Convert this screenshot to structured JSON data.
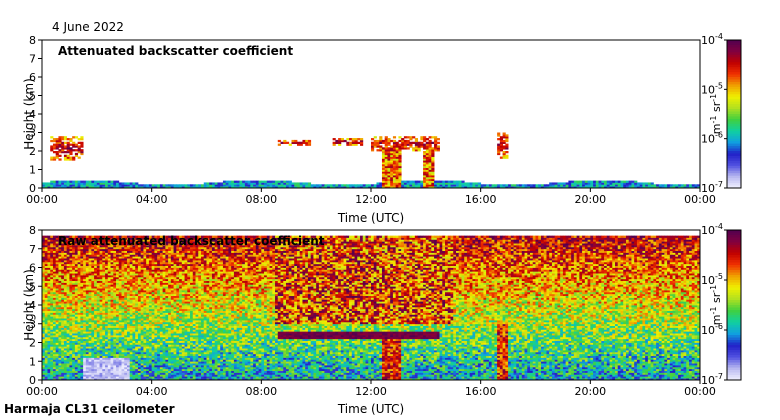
{
  "page": {
    "date": "4 June 2022",
    "footer": "Harmaja CL31 ceilometer"
  },
  "colorbar": {
    "stops": [
      "#f0f0ff",
      "#b8b8f0",
      "#5050e0",
      "#2020c8",
      "#10a0e0",
      "#10d0a0",
      "#40d040",
      "#b0e020",
      "#f0f000",
      "#f0a000",
      "#f03000",
      "#c00000",
      "#800040",
      "#500050"
    ],
    "ticks": [
      {
        "base": "10",
        "exp": "-4",
        "value": 0.0001
      },
      {
        "base": "10",
        "exp": "-5",
        "value": 1e-05
      },
      {
        "base": "10",
        "exp": "-6",
        "value": 1e-06
      },
      {
        "base": "10",
        "exp": "-7",
        "value": 1e-07
      }
    ],
    "unit_m": "m",
    "unit_m_exp": "-1",
    "unit_sr": "sr",
    "unit_sr_exp": "-1"
  },
  "chart_data": [
    {
      "type": "heatmap",
      "title": "Attenuated backscatter coefficient",
      "xlabel": "Time (UTC)",
      "ylabel": "Height (km)",
      "xlim": [
        0,
        24
      ],
      "ylim": [
        0,
        8
      ],
      "xticks": [
        0,
        4,
        8,
        12,
        16,
        20,
        24
      ],
      "xticklabels": [
        "00:00",
        "04:00",
        "08:00",
        "12:00",
        "16:00",
        "20:00",
        "00:00"
      ],
      "yticks": [
        0,
        1,
        2,
        3,
        4,
        5,
        6,
        7,
        8
      ],
      "color_scale": {
        "min": 1e-07,
        "max": 0.0001,
        "scale": "log"
      },
      "features": [
        {
          "kind": "surface_layer",
          "description": "near-surface aerosol",
          "t_start": 0,
          "t_end": 24,
          "top_km": 0.45
        },
        {
          "kind": "cloud_layer",
          "t_start": 8.6,
          "t_end": 9.8,
          "base_km": 2.35,
          "top_km": 2.6,
          "level": "high"
        },
        {
          "kind": "cloud_layer",
          "t_start": 10.6,
          "t_end": 11.7,
          "base_km": 2.3,
          "top_km": 2.7,
          "level": "high"
        },
        {
          "kind": "cloud_layer",
          "t_start": 12.0,
          "t_end": 14.5,
          "base_km": 2.0,
          "top_km": 2.8,
          "level": "high"
        },
        {
          "kind": "precipitation_column",
          "t_start": 12.4,
          "t_end": 13.1,
          "top_km": 2.2
        },
        {
          "kind": "precipitation_column",
          "t_start": 13.9,
          "t_end": 14.3,
          "top_km": 2.0
        },
        {
          "kind": "cloud_layer",
          "t_start": 16.6,
          "t_end": 17.0,
          "base_km": 1.6,
          "top_km": 3.0,
          "level": "medium"
        },
        {
          "kind": "cloud_layer",
          "t_start": 0.3,
          "t_end": 1.5,
          "base_km": 1.5,
          "top_km": 2.8,
          "level": "high"
        }
      ]
    },
    {
      "type": "heatmap",
      "title": "Raw attenuated backscatter coefficient",
      "xlabel": "Time (UTC)",
      "ylabel": "Height (km)",
      "xlim": [
        0,
        24
      ],
      "ylim": [
        0,
        8
      ],
      "xticks": [
        0,
        4,
        8,
        12,
        16,
        20,
        24
      ],
      "xticklabels": [
        "00:00",
        "04:00",
        "08:00",
        "12:00",
        "16:00",
        "20:00",
        "00:00"
      ],
      "yticks": [
        0,
        1,
        2,
        3,
        4,
        5,
        6,
        7,
        8
      ],
      "color_scale": {
        "min": 1e-07,
        "max": 0.0001,
        "scale": "log"
      },
      "features": [
        {
          "kind": "noisy_background",
          "description": "signal noise increases with height"
        },
        {
          "kind": "clean_region",
          "t_start": 1.5,
          "t_end": 3.2,
          "top_km": 1.2
        },
        {
          "kind": "high_noise_block",
          "t_start": 8.5,
          "t_end": 15.0,
          "base_km": 3.0,
          "top_km": 7.7
        },
        {
          "kind": "cloud_layer",
          "t_start": 8.6,
          "t_end": 14.5,
          "base_km": 2.2,
          "top_km": 2.6,
          "level": "high"
        },
        {
          "kind": "precipitation_column",
          "t_start": 12.4,
          "t_end": 13.1,
          "top_km": 2.2
        },
        {
          "kind": "precipitation_column",
          "t_start": 16.6,
          "t_end": 17.0,
          "top_km": 3.0
        }
      ]
    }
  ]
}
